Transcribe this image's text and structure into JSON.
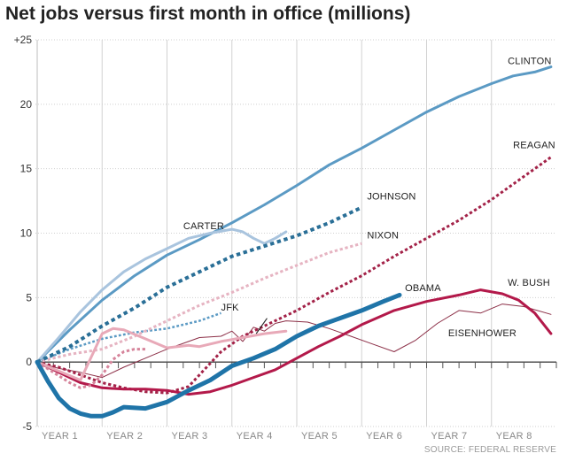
{
  "chart_data": {
    "type": "line",
    "title": "Net jobs versus first month in office (millions)",
    "xlabel": "",
    "ylabel": "",
    "xlim": [
      0,
      96
    ],
    "ylim": [
      -5,
      25
    ],
    "x_ticks": [
      {
        "label": "YEAR 1",
        "value": 0
      },
      {
        "label": "YEAR 2",
        "value": 12
      },
      {
        "label": "YEAR 3",
        "value": 24
      },
      {
        "label": "YEAR 4",
        "value": 36
      },
      {
        "label": "YEAR 5",
        "value": 48
      },
      {
        "label": "YEAR 6",
        "value": 60
      },
      {
        "label": "YEAR 7",
        "value": 72
      },
      {
        "label": "YEAR 8",
        "value": 84
      }
    ],
    "y_ticks": [
      "+25",
      "20",
      "15",
      "10",
      "5",
      "0",
      "-5"
    ],
    "y_tick_values": [
      25,
      20,
      15,
      10,
      5,
      0,
      -5
    ],
    "grid": true,
    "source": "SOURCE: FEDERAL RESERVE",
    "series": [
      {
        "name": "CLINTON",
        "color": "#5b9ac4",
        "style": "solid",
        "width": 3,
        "x": [
          0,
          6,
          12,
          18,
          24,
          30,
          36,
          42,
          48,
          54,
          60,
          66,
          72,
          78,
          84,
          88,
          92,
          95
        ],
        "y": [
          0,
          2.5,
          4.8,
          6.7,
          8.3,
          9.5,
          10.8,
          12.2,
          13.7,
          15.3,
          16.6,
          18.0,
          19.4,
          20.6,
          21.6,
          22.2,
          22.5,
          22.9
        ]
      },
      {
        "name": "REAGAN",
        "color": "#a32248",
        "style": "dotted",
        "width": 3,
        "x": [
          0,
          4,
          8,
          12,
          16,
          20,
          24,
          28,
          30,
          34,
          38,
          42,
          48,
          54,
          60,
          66,
          72,
          78,
          84,
          90,
          95
        ],
        "y": [
          0,
          -0.4,
          -1.0,
          -1.6,
          -2.0,
          -2.3,
          -2.4,
          -1.9,
          -1.0,
          0.8,
          2.0,
          2.8,
          4.0,
          5.4,
          6.7,
          8.2,
          9.6,
          11.0,
          12.6,
          14.4,
          15.9
        ]
      },
      {
        "name": "JOHNSON",
        "color": "#2a6f97",
        "style": "dotted",
        "width": 4,
        "x": [
          0,
          6,
          12,
          18,
          24,
          30,
          36,
          42,
          48,
          54,
          60
        ],
        "y": [
          0,
          1.2,
          2.8,
          4.2,
          5.8,
          7.0,
          8.2,
          9.0,
          9.8,
          10.8,
          12.0
        ]
      },
      {
        "name": "CARTER",
        "color": "#a9c4de",
        "style": "solid",
        "width": 3,
        "x": [
          0,
          4,
          8,
          12,
          16,
          20,
          24,
          28,
          32,
          36,
          38,
          40,
          42,
          44,
          46
        ],
        "y": [
          0,
          1.9,
          3.9,
          5.6,
          7.0,
          8.0,
          8.8,
          9.6,
          10.0,
          10.3,
          10.1,
          9.6,
          9.2,
          9.6,
          10.1
        ]
      },
      {
        "name": "NIXON",
        "color": "#e6b4c2",
        "style": "dotted",
        "width": 3,
        "x": [
          0,
          6,
          12,
          18,
          24,
          30,
          36,
          42,
          48,
          54,
          60
        ],
        "y": [
          0,
          0.6,
          1.0,
          2.0,
          3.2,
          4.4,
          5.4,
          6.5,
          7.5,
          8.5,
          9.2
        ]
      },
      {
        "name": "JFK",
        "color": "#5b9ac4",
        "style": "dotted",
        "width": 2.5,
        "x": [
          0,
          6,
          12,
          18,
          24,
          30,
          34
        ],
        "y": [
          0,
          1.0,
          1.8,
          2.3,
          2.6,
          3.2,
          3.8
        ]
      },
      {
        "name": "OBAMA",
        "color": "#1f74a8",
        "style": "solid",
        "width": 5,
        "x": [
          0,
          2,
          4,
          6,
          8,
          10,
          12,
          14,
          16,
          20,
          24,
          28,
          32,
          36,
          40,
          44,
          48,
          52,
          56,
          60,
          64,
          67
        ],
        "y": [
          0,
          -1.5,
          -2.8,
          -3.6,
          -4.0,
          -4.2,
          -4.2,
          -3.9,
          -3.5,
          -3.6,
          -3.1,
          -2.2,
          -1.4,
          -0.3,
          0.3,
          1.0,
          2.0,
          2.8,
          3.4,
          4.0,
          4.7,
          5.2
        ]
      },
      {
        "name": "W. BUSH",
        "color": "#b3194a",
        "style": "solid",
        "width": 3,
        "x": [
          0,
          4,
          8,
          12,
          16,
          20,
          24,
          28,
          32,
          36,
          40,
          44,
          48,
          52,
          56,
          60,
          66,
          72,
          78,
          82,
          86,
          89,
          92,
          95
        ],
        "y": [
          0,
          -0.8,
          -1.6,
          -2.0,
          -2.1,
          -2.1,
          -2.2,
          -2.5,
          -2.3,
          -1.8,
          -1.2,
          -0.6,
          0.3,
          1.2,
          2.0,
          2.9,
          4.0,
          4.7,
          5.2,
          5.6,
          5.3,
          4.8,
          3.8,
          2.2
        ]
      },
      {
        "name": "EISENHOWER",
        "color": "#8c2f47",
        "style": "solid",
        "width": 1,
        "x": [
          0,
          4,
          8,
          12,
          16,
          20,
          24,
          28,
          30,
          34,
          36,
          38,
          40,
          42,
          44,
          46,
          50,
          54,
          58,
          62,
          66,
          70,
          74,
          78,
          82,
          86,
          90,
          95
        ],
        "y": [
          0,
          -0.5,
          -0.8,
          -1.2,
          -0.4,
          0.3,
          1.0,
          1.6,
          1.9,
          2.0,
          2.4,
          1.6,
          2.7,
          2.4,
          3.0,
          3.2,
          3.1,
          2.6,
          2.0,
          1.4,
          0.8,
          1.7,
          3.0,
          4.0,
          3.8,
          4.5,
          4.3,
          3.7
        ]
      },
      {
        "name": "",
        "color": "#e8a9b8",
        "style": "solid",
        "width": 3,
        "x": [
          0,
          4,
          8,
          12,
          14,
          16,
          20,
          24,
          28,
          30,
          34,
          38,
          42,
          46
        ],
        "y": [
          0,
          -0.7,
          -1.4,
          2.2,
          2.6,
          2.5,
          1.8,
          1.1,
          1.3,
          1.2,
          1.6,
          1.9,
          2.2,
          2.4
        ]
      },
      {
        "name": "",
        "color": "#d6849b",
        "style": "dotted",
        "width": 3,
        "x": [
          0,
          3,
          6,
          8,
          10,
          12,
          14,
          16,
          18,
          20
        ],
        "y": [
          0,
          -0.8,
          -1.6,
          -2.0,
          -1.8,
          -1.0,
          0.2,
          0.8,
          1.0,
          1.0
        ]
      }
    ],
    "annotations": [
      {
        "text": "CLINTON",
        "x": 87,
        "y": 23.1
      },
      {
        "text": "REAGAN",
        "x": 88,
        "y": 16.6
      },
      {
        "text": "JOHNSON",
        "x": 61,
        "y": 12.6
      },
      {
        "text": "CARTER",
        "x": 27,
        "y": 10.3
      },
      {
        "text": "NIXON",
        "x": 61,
        "y": 9.6
      },
      {
        "text": "JFK",
        "x": 34,
        "y": 4.0
      },
      {
        "text": "OBAMA",
        "x": 68,
        "y": 5.5
      },
      {
        "text": "W. BUSH",
        "x": 87,
        "y": 5.9
      },
      {
        "text": "EISENHOWER",
        "x": 76,
        "y": 2.0
      }
    ]
  }
}
